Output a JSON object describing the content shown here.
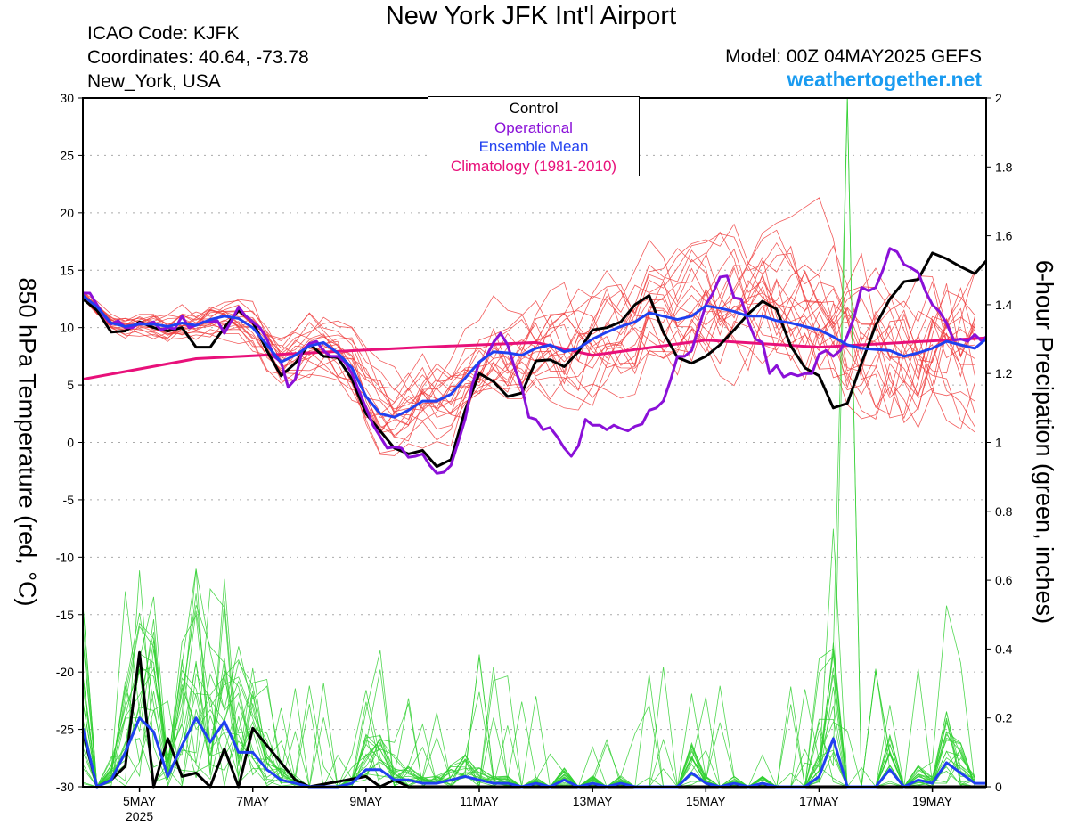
{
  "header": {
    "title": "New York JFK Int'l Airport",
    "icao": "ICAO Code: KJFK",
    "coords": "Coordinates: 40.64, -73.78",
    "location": "New_York, USA",
    "model": "Model: 00Z 04MAY2025 GEFS",
    "credit": "weathertogether.net"
  },
  "colors": {
    "control": "#000000",
    "operational": "#8a10d8",
    "ensemble_mean": "#2040f0",
    "climatology": "#e8107a",
    "members_temp": "#f04040",
    "members_precip": "#30d030",
    "credit": "#1a9bf0"
  },
  "chart_data": {
    "type": "line",
    "left_axis": {
      "label": "850 hPa Temperature (red, °C)",
      "range": [
        -30,
        30
      ],
      "ticks": [
        "30",
        "25",
        "20",
        "15",
        "10",
        "5",
        "0",
        "-5",
        "-10",
        "-15",
        "-20",
        "-25",
        "-30"
      ]
    },
    "right_axis": {
      "label": "6-hour Precipation (green, inches)",
      "range": [
        0,
        2
      ],
      "ticks": [
        "2",
        "1.8",
        "1.6",
        "1.4",
        "1.2",
        "1",
        "0.8",
        "0.6",
        "0.4",
        "0.2",
        "0"
      ]
    },
    "x_axis": {
      "unit": "day of May 2025 (00Z)",
      "range": [
        4.0,
        19.95
      ],
      "ticks": [
        {
          "x": 5,
          "label": "5MAY",
          "sub": "2025"
        },
        {
          "x": 7,
          "label": "7MAY"
        },
        {
          "x": 9,
          "label": "9MAY"
        },
        {
          "x": 11,
          "label": "11MAY"
        },
        {
          "x": 13,
          "label": "13MAY"
        },
        {
          "x": 15,
          "label": "15MAY"
        },
        {
          "x": 17,
          "label": "17MAY"
        },
        {
          "x": 19,
          "label": "19MAY"
        }
      ]
    },
    "grid": "dotted horizontal",
    "legend": [
      "Control",
      "Operational",
      "Ensemble Mean",
      "Climatology (1981-2010)"
    ],
    "series": [
      {
        "name": "Climatology (1981-2010)",
        "axis": "temp",
        "x": [
          4.0,
          6.0,
          8.0,
          10.0,
          12.0,
          13.0,
          15.0,
          17.0,
          19.95
        ],
        "values": [
          5.5,
          7.3,
          7.8,
          8.3,
          8.7,
          7.6,
          8.9,
          8.3,
          9.1
        ]
      },
      {
        "name": "Control",
        "axis": "temp",
        "x": [
          4.0,
          4.25,
          4.5,
          4.75,
          5.0,
          5.25,
          5.5,
          5.75,
          6.0,
          6.25,
          6.5,
          6.75,
          7.0,
          7.25,
          7.5,
          7.75,
          8.0,
          8.25,
          8.5,
          8.75,
          9.0,
          9.25,
          9.5,
          9.75,
          10.0,
          10.25,
          10.5,
          10.75,
          11.0,
          11.25,
          11.5,
          11.75,
          12.0,
          12.25,
          12.5,
          12.75,
          13.0,
          13.25,
          13.5,
          13.75,
          14.0,
          14.25,
          14.5,
          14.75,
          15.0,
          15.25,
          15.5,
          15.75,
          16.0,
          16.25,
          16.5,
          16.75,
          17.0,
          17.25,
          17.5,
          17.75,
          18.0,
          18.25,
          18.5,
          18.75,
          19.0,
          19.25,
          19.5,
          19.75,
          19.95
        ],
        "values": [
          12.5,
          11.5,
          9.6,
          9.7,
          10.5,
          10.0,
          9.7,
          10.0,
          8.3,
          8.3,
          10.0,
          11.5,
          10.5,
          8.0,
          5.8,
          6.9,
          8.6,
          7.5,
          7.4,
          5.5,
          2.5,
          1.0,
          -0.5,
          -1.0,
          -0.7,
          -2.1,
          -1.5,
          2.8,
          6.0,
          5.3,
          4.0,
          4.3,
          7.1,
          7.2,
          6.6,
          7.9,
          9.8,
          10.0,
          10.5,
          12.0,
          12.8,
          9.6,
          7.4,
          6.9,
          7.5,
          8.5,
          9.8,
          11.2,
          12.3,
          11.6,
          8.4,
          6.5,
          5.8,
          3.0,
          3.4,
          6.9,
          10.2,
          12.5,
          14.0,
          14.2,
          16.5,
          16.0,
          15.3,
          14.7,
          15.8
        ]
      },
      {
        "name": "Operational",
        "axis": "temp",
        "x": [
          4.0,
          4.125,
          4.25,
          4.375,
          4.5,
          4.625,
          4.75,
          4.875,
          5.0,
          5.125,
          5.25,
          5.375,
          5.5,
          5.625,
          5.75,
          5.875,
          6.0,
          6.125,
          6.25,
          6.375,
          6.5,
          6.625,
          6.75,
          6.875,
          7.0,
          7.125,
          7.25,
          7.375,
          7.5,
          7.625,
          7.75,
          7.875,
          8.0,
          8.125,
          8.25,
          8.375,
          8.5,
          8.625,
          8.75,
          8.875,
          9.0,
          9.125,
          9.25,
          9.375,
          9.5,
          9.625,
          9.75,
          9.875,
          10.0,
          10.125,
          10.25,
          10.375,
          10.5,
          10.625,
          10.75,
          10.875,
          11.0,
          11.125,
          11.25,
          11.375,
          11.5,
          11.625,
          11.75,
          11.875,
          12.0,
          12.125,
          12.25,
          12.375,
          12.5,
          12.625,
          12.75,
          12.875,
          13.0,
          13.125,
          13.25,
          13.375,
          13.5,
          13.625,
          13.75,
          13.875,
          14.0,
          14.125,
          14.25,
          14.375,
          14.5,
          14.625,
          14.75,
          14.875,
          15.0,
          15.125,
          15.25,
          15.375,
          15.5,
          15.625,
          15.75,
          15.875,
          16.0,
          16.125,
          16.25,
          16.375,
          16.5,
          16.625,
          16.75,
          16.875,
          17.0,
          17.125,
          17.25,
          17.375,
          17.5,
          17.625,
          17.75,
          17.875,
          18.0,
          18.125,
          18.25,
          18.375,
          18.5,
          18.625,
          18.75,
          18.875,
          19.0,
          19.125,
          19.25,
          19.375,
          19.5,
          19.625,
          19.75,
          19.875,
          19.95
        ],
        "values": [
          13.0,
          13.0,
          12.0,
          11.0,
          10.3,
          10.6,
          10.0,
          10.0,
          10.4,
          10.3,
          10.5,
          9.8,
          10.0,
          9.9,
          11.0,
          10.0,
          10.2,
          10.5,
          10.5,
          10.6,
          9.5,
          10.6,
          11.8,
          11.0,
          10.5,
          10.0,
          9.0,
          7.5,
          7.0,
          4.8,
          5.5,
          8.0,
          8.6,
          8.8,
          8.0,
          7.5,
          7.5,
          7.0,
          6.0,
          4.5,
          3.0,
          1.5,
          0.5,
          -0.5,
          -0.4,
          -0.5,
          -1.3,
          -1.2,
          -1.0,
          -2.0,
          -2.7,
          -2.6,
          -2.0,
          0.0,
          2.0,
          5.0,
          7.0,
          7.5,
          8.7,
          9.5,
          8.5,
          6.5,
          4.8,
          2.2,
          2.0,
          1.1,
          1.3,
          0.5,
          -0.5,
          -1.2,
          -0.3,
          2.0,
          1.5,
          1.5,
          1.1,
          1.5,
          1.2,
          1.0,
          1.4,
          1.6,
          2.8,
          3.0,
          3.6,
          5.4,
          7.5,
          7.5,
          8.0,
          10.0,
          12.0,
          13.0,
          14.4,
          14.5,
          12.6,
          12.5,
          10.5,
          9.0,
          8.7,
          6.0,
          6.7,
          5.7,
          6.0,
          5.8,
          6.0,
          6.0,
          7.7,
          8.0,
          7.5,
          8.0,
          9.3,
          11.0,
          13.5,
          13.2,
          13.5,
          15.0,
          16.9,
          16.6,
          15.5,
          15.2,
          14.8,
          13.2,
          12.0,
          11.4,
          10.4,
          8.9,
          9.0,
          8.8,
          9.4,
          8.8,
          9.2
        ]
      },
      {
        "name": "Ensemble Mean",
        "axis": "temp",
        "x": [
          4.0,
          4.25,
          4.5,
          4.75,
          5.0,
          5.25,
          5.5,
          5.75,
          6.0,
          6.25,
          6.5,
          6.75,
          7.0,
          7.25,
          7.5,
          7.75,
          8.0,
          8.25,
          8.5,
          8.75,
          9.0,
          9.25,
          9.5,
          9.75,
          10.0,
          10.25,
          10.5,
          10.75,
          11.0,
          11.25,
          11.5,
          11.75,
          12.0,
          12.25,
          12.5,
          12.75,
          13.0,
          13.25,
          13.5,
          13.75,
          14.0,
          14.25,
          14.5,
          14.75,
          15.0,
          15.25,
          15.5,
          15.75,
          16.0,
          16.25,
          16.5,
          16.75,
          17.0,
          17.25,
          17.5,
          17.75,
          18.0,
          18.25,
          18.5,
          18.75,
          19.0,
          19.25,
          19.5,
          19.75,
          19.95
        ],
        "values": [
          12.8,
          11.8,
          10.4,
          10.1,
          10.3,
          10.3,
          10.1,
          10.4,
          10.2,
          10.7,
          11.0,
          10.8,
          10.0,
          8.5,
          7.0,
          7.6,
          8.4,
          8.7,
          7.8,
          6.5,
          4.0,
          2.5,
          2.2,
          2.8,
          3.6,
          3.6,
          4.2,
          5.6,
          7.0,
          7.9,
          7.8,
          7.6,
          8.2,
          8.5,
          7.9,
          8.2,
          9.0,
          9.6,
          10.1,
          10.5,
          11.3,
          11.0,
          10.7,
          11.0,
          11.9,
          11.7,
          11.4,
          11.0,
          11.0,
          10.6,
          10.4,
          10.1,
          9.8,
          9.2,
          8.5,
          8.2,
          8.1,
          8.0,
          7.5,
          7.8,
          8.2,
          8.8,
          8.5,
          8.2,
          9.0
        ]
      },
      {
        "name": "Control",
        "axis": "precip",
        "x": [
          4.0,
          4.25,
          4.5,
          4.75,
          5.0,
          5.25,
          5.5,
          5.75,
          6.0,
          6.25,
          6.5,
          6.75,
          7.0,
          7.25,
          7.5,
          7.75,
          8.0,
          9.0,
          9.25,
          9.5,
          9.75,
          10.0,
          19.95
        ],
        "values": [
          0.16,
          0.0,
          0.02,
          0.06,
          0.39,
          0.0,
          0.14,
          0.03,
          0.04,
          0.0,
          0.11,
          0.0,
          0.17,
          0.12,
          0.07,
          0.02,
          0.0,
          0.03,
          0.0,
          0.02,
          0.0,
          0.0,
          0.0
        ]
      },
      {
        "name": "Ensemble Mean",
        "axis": "precip",
        "x": [
          4.0,
          4.25,
          4.5,
          4.75,
          5.0,
          5.25,
          5.5,
          5.75,
          6.0,
          6.25,
          6.5,
          6.75,
          7.0,
          7.25,
          7.5,
          7.75,
          8.0,
          8.25,
          8.5,
          8.75,
          9.0,
          9.25,
          9.5,
          9.75,
          10.0,
          10.25,
          10.5,
          10.75,
          11.0,
          11.25,
          11.5,
          11.75,
          12.0,
          12.25,
          12.5,
          12.75,
          13.0,
          13.25,
          13.5,
          13.75,
          14.0,
          14.25,
          14.5,
          14.75,
          15.0,
          15.25,
          15.5,
          15.75,
          16.0,
          16.25,
          16.5,
          16.75,
          17.0,
          17.25,
          17.5,
          17.75,
          18.0,
          18.25,
          18.5,
          18.75,
          19.0,
          19.25,
          19.5,
          19.75,
          19.95
        ],
        "values": [
          0.17,
          0.0,
          0.02,
          0.1,
          0.2,
          0.16,
          0.03,
          0.12,
          0.2,
          0.13,
          0.19,
          0.1,
          0.1,
          0.05,
          0.02,
          0.01,
          0.0,
          0.0,
          0.0,
          0.01,
          0.05,
          0.05,
          0.02,
          0.02,
          0.01,
          0.01,
          0.02,
          0.03,
          0.02,
          0.01,
          0.01,
          0.0,
          0.01,
          0.0,
          0.02,
          0.0,
          0.01,
          0.0,
          0.01,
          0.0,
          0.0,
          0.0,
          0.0,
          0.04,
          0.01,
          0.0,
          0.01,
          0.0,
          0.01,
          0.0,
          0.0,
          0.0,
          0.03,
          0.14,
          0.0,
          0.0,
          0.0,
          0.05,
          0.0,
          0.02,
          0.01,
          0.07,
          0.04,
          0.01,
          0.01
        ]
      }
    ]
  }
}
